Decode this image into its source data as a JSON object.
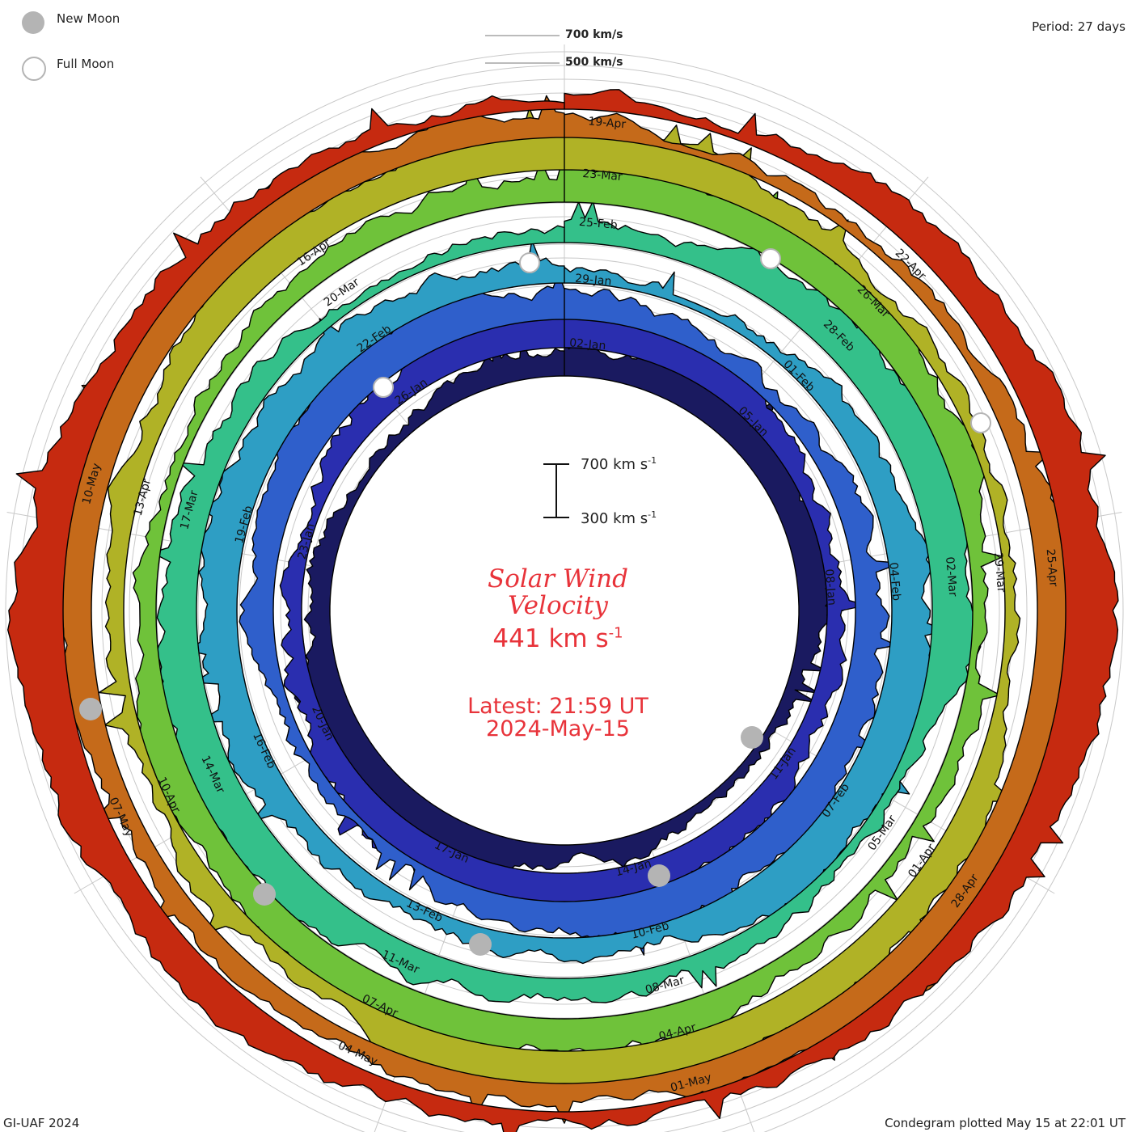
{
  "legend": {
    "new_moon_label": "New Moon",
    "full_moon_label": "Full Moon"
  },
  "period_label": "Period: 27 days",
  "credit": "GI-UAF 2024",
  "plotted_label": "Condegram plotted May 15 at 22:01 UT",
  "outer_scale": {
    "label_high": "700 km/s",
    "label_low": "500 km/s"
  },
  "inner_scale": {
    "label_high": "700 km s",
    "label_low": "300 km s",
    "sup": "-1"
  },
  "title_line1": "Solar Wind",
  "title_line2": "Velocity",
  "current_speed": "441 km s",
  "current_speed_sup": "-1",
  "latest_time": "Latest: 21:59 UT",
  "latest_date": "2024-May-15",
  "colors": {
    "rings": [
      "#1a1a60",
      "#2a2eaf",
      "#2f5fcb",
      "#2e9ec4",
      "#34c08a",
      "#6fc23a",
      "#b0b226",
      "#c56a1a",
      "#c62a10"
    ],
    "moon": "#b4b4b4",
    "accent": "#e8333a"
  },
  "chart_data": {
    "type": "spiral condegram",
    "period_days": 27,
    "units": "km/s",
    "rotations": [
      {
        "labels": [
          "02-Jan",
          "05-Jan",
          "08-Jan",
          "11-Jan",
          "14-Jan",
          "17-Jan",
          "20-Jan",
          "23-Jan",
          "26-Jan"
        ]
      },
      {
        "labels": [
          "29-Jan",
          "01-Feb",
          "04-Feb",
          "07-Feb",
          "10-Feb",
          "13-Feb",
          "16-Feb",
          "19-Feb",
          "22-Feb"
        ]
      },
      {
        "labels": [
          "25-Feb",
          "28-Feb",
          "02-Mar",
          "05-Mar",
          "08-Mar",
          "11-Mar",
          "14-Mar",
          "17-Mar",
          "20-Mar"
        ]
      },
      {
        "labels": [
          "23-Mar",
          "26-Mar",
          "29-Mar",
          "01-Apr",
          "04-Apr",
          "07-Apr",
          "10-Apr",
          "13-Apr",
          "16-Apr"
        ]
      },
      {
        "labels": [
          "19-Apr",
          "22-Apr",
          "25-Apr",
          "28-Apr",
          "01-May",
          "04-May",
          "07-May",
          "10-May"
        ]
      }
    ],
    "current_speed_kms": 441
  }
}
